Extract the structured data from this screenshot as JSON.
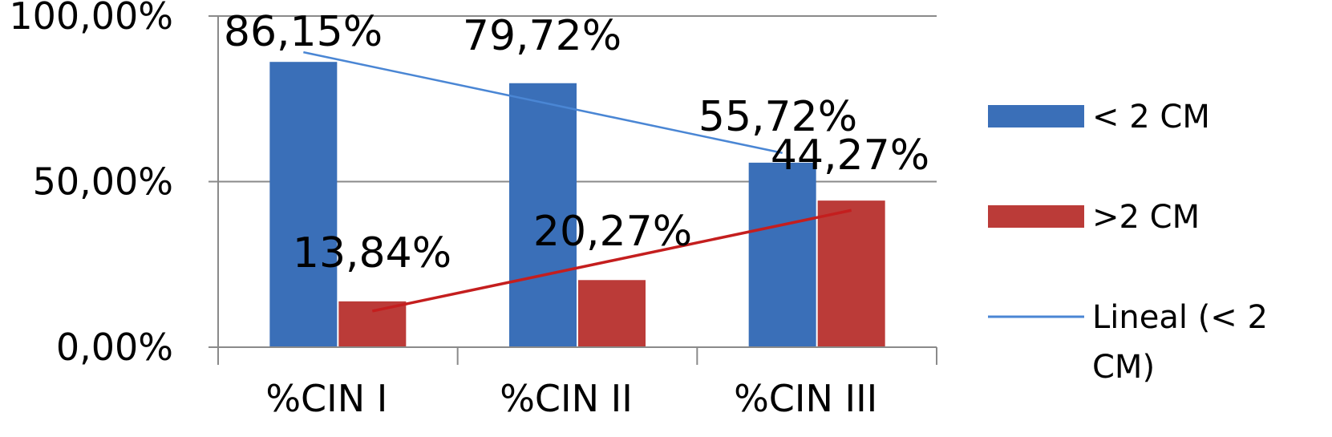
{
  "chart_data": {
    "type": "bar",
    "categories": [
      "%CIN I",
      "%CIN II",
      "%CIN III"
    ],
    "series": [
      {
        "name": "< 2 CM",
        "values": [
          86.15,
          79.72,
          55.72
        ],
        "labels": [
          "86,15%",
          "79,72%",
          "55,72%"
        ],
        "color": "#3a6fb8"
      },
      {
        "name": ">2 CM",
        "values": [
          13.84,
          20.27,
          44.27
        ],
        "labels": [
          "13,84%",
          "20,27%",
          "44,27%"
        ],
        "color": "#bb3b38"
      }
    ],
    "trendlines": [
      {
        "legend": "Lineal (< 2 CM)",
        "legend_lines": [
          "Lineal (< 2",
          "CM)"
        ],
        "series_index": 0,
        "type": "linear",
        "color": "#4a86d4"
      },
      {
        "legend": null,
        "series_index": 1,
        "type": "linear",
        "color": "#c41e1e"
      }
    ],
    "y_ticks": [
      {
        "value": 0,
        "label": "0,00%"
      },
      {
        "value": 50,
        "label": "50,00%"
      },
      {
        "value": 100,
        "label": "100,00%"
      }
    ],
    "ylim": [
      0,
      100
    ],
    "grid": true,
    "legend_position": "right"
  }
}
